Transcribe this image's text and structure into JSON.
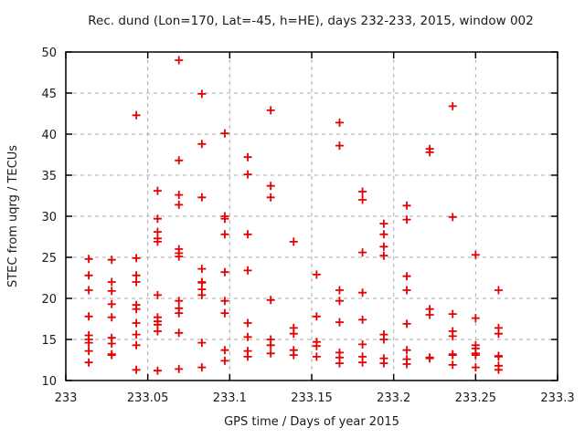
{
  "title": "Rec. dund (Lon=170, Lat=-45, h=HE), days 232-233, 2015, window 002",
  "colors": {
    "marker": "#e60000",
    "grid": "#ababab",
    "frame": "#000000",
    "background": "#ffffff",
    "text": "#1a1a1a"
  },
  "chart_data": {
    "type": "scatter",
    "title": "Rec. dund (Lon=170, Lat=-45, h=HE), days 232-233, 2015, window 002",
    "xlabel": "GPS time / Days of year 2015",
    "ylabel": "STEC from uqrg / TECUs",
    "xlim": [
      233,
      233.3
    ],
    "ylim": [
      10,
      50
    ],
    "grid": true,
    "legend": "none",
    "marker_shape": "plus",
    "xticks": {
      "values": [
        233,
        233.05,
        233.1,
        233.15,
        233.2,
        233.25,
        233.3
      ],
      "labels": [
        "233",
        "233.05",
        "233.1",
        "233.15",
        "233.2",
        "233.25",
        "233.3"
      ]
    },
    "yticks": {
      "values": [
        10,
        15,
        20,
        25,
        30,
        35,
        40,
        45,
        50
      ],
      "labels": [
        "10",
        "15",
        "20",
        "25",
        "30",
        "35",
        "40",
        "45",
        "50"
      ]
    },
    "points": [
      [
        233.014,
        24.8
      ],
      [
        233.014,
        22.8
      ],
      [
        233.014,
        21.0
      ],
      [
        233.014,
        17.8
      ],
      [
        233.014,
        15.5
      ],
      [
        233.014,
        15.0
      ],
      [
        233.014,
        14.6
      ],
      [
        233.014,
        13.6
      ],
      [
        233.014,
        12.2
      ],
      [
        233.028,
        24.7
      ],
      [
        233.028,
        22.0
      ],
      [
        233.028,
        20.9
      ],
      [
        233.028,
        19.3
      ],
      [
        233.028,
        17.7
      ],
      [
        233.028,
        15.2
      ],
      [
        233.028,
        14.5
      ],
      [
        233.028,
        13.2
      ],
      [
        233.028,
        13.1
      ],
      [
        233.043,
        42.3
      ],
      [
        233.043,
        24.9
      ],
      [
        233.043,
        22.8
      ],
      [
        233.043,
        22.0
      ],
      [
        233.043,
        19.2
      ],
      [
        233.043,
        18.7
      ],
      [
        233.043,
        17.0
      ],
      [
        233.043,
        15.6
      ],
      [
        233.043,
        14.3
      ],
      [
        233.043,
        11.3
      ],
      [
        233.056,
        33.1
      ],
      [
        233.056,
        29.7
      ],
      [
        233.056,
        28.1
      ],
      [
        233.056,
        27.3
      ],
      [
        233.056,
        26.9
      ],
      [
        233.056,
        20.4
      ],
      [
        233.056,
        17.7
      ],
      [
        233.056,
        17.2
      ],
      [
        233.056,
        16.8
      ],
      [
        233.056,
        16.0
      ],
      [
        233.056,
        11.2
      ],
      [
        233.069,
        49.0
      ],
      [
        233.069,
        36.8
      ],
      [
        233.069,
        32.6
      ],
      [
        233.069,
        31.4
      ],
      [
        233.069,
        26.0
      ],
      [
        233.069,
        25.5
      ],
      [
        233.069,
        25.1
      ],
      [
        233.069,
        19.7
      ],
      [
        233.069,
        18.8
      ],
      [
        233.069,
        18.2
      ],
      [
        233.069,
        15.8
      ],
      [
        233.069,
        11.4
      ],
      [
        233.083,
        44.9
      ],
      [
        233.083,
        38.8
      ],
      [
        233.083,
        32.3
      ],
      [
        233.083,
        23.6
      ],
      [
        233.083,
        22.0
      ],
      [
        233.083,
        21.9
      ],
      [
        233.083,
        21.1
      ],
      [
        233.083,
        20.4
      ],
      [
        233.083,
        14.6
      ],
      [
        233.083,
        11.6
      ],
      [
        233.097,
        40.1
      ],
      [
        233.097,
        30.0
      ],
      [
        233.097,
        29.7
      ],
      [
        233.097,
        27.8
      ],
      [
        233.097,
        23.2
      ],
      [
        233.097,
        19.7
      ],
      [
        233.097,
        18.2
      ],
      [
        233.097,
        13.7
      ],
      [
        233.097,
        12.4
      ],
      [
        233.111,
        37.2
      ],
      [
        233.111,
        35.1
      ],
      [
        233.111,
        27.8
      ],
      [
        233.111,
        23.4
      ],
      [
        233.111,
        17.0
      ],
      [
        233.111,
        15.3
      ],
      [
        233.111,
        13.6
      ],
      [
        233.111,
        12.9
      ],
      [
        233.125,
        42.9
      ],
      [
        233.125,
        33.7
      ],
      [
        233.125,
        32.3
      ],
      [
        233.125,
        19.8
      ],
      [
        233.125,
        15.0
      ],
      [
        233.125,
        14.3
      ],
      [
        233.125,
        13.3
      ],
      [
        233.139,
        26.9
      ],
      [
        233.139,
        16.4
      ],
      [
        233.139,
        15.7
      ],
      [
        233.139,
        13.7
      ],
      [
        233.139,
        13.1
      ],
      [
        233.153,
        22.9
      ],
      [
        233.153,
        17.8
      ],
      [
        233.153,
        14.7
      ],
      [
        233.153,
        14.2
      ],
      [
        233.153,
        12.9
      ],
      [
        233.167,
        41.4
      ],
      [
        233.167,
        38.6
      ],
      [
        233.167,
        21.0
      ],
      [
        233.167,
        19.7
      ],
      [
        233.167,
        17.1
      ],
      [
        233.167,
        13.4
      ],
      [
        233.167,
        12.8
      ],
      [
        233.167,
        12.1
      ],
      [
        233.181,
        33.0
      ],
      [
        233.181,
        32.0
      ],
      [
        233.181,
        25.6
      ],
      [
        233.181,
        20.7
      ],
      [
        233.181,
        17.4
      ],
      [
        233.181,
        14.4
      ],
      [
        233.181,
        12.9
      ],
      [
        233.181,
        12.2
      ],
      [
        233.194,
        29.1
      ],
      [
        233.194,
        27.8
      ],
      [
        233.194,
        26.3
      ],
      [
        233.194,
        25.2
      ],
      [
        233.194,
        15.6
      ],
      [
        233.194,
        15.0
      ],
      [
        233.194,
        12.7
      ],
      [
        233.194,
        12.1
      ],
      [
        233.208,
        31.3
      ],
      [
        233.208,
        29.6
      ],
      [
        233.208,
        22.7
      ],
      [
        233.208,
        21.0
      ],
      [
        233.208,
        16.9
      ],
      [
        233.208,
        13.7
      ],
      [
        233.208,
        12.6
      ],
      [
        233.208,
        12.0
      ],
      [
        233.222,
        38.2
      ],
      [
        233.222,
        37.8
      ],
      [
        233.222,
        18.7
      ],
      [
        233.222,
        18.0
      ],
      [
        233.222,
        12.8
      ],
      [
        233.222,
        12.7
      ],
      [
        233.236,
        43.4
      ],
      [
        233.236,
        29.9
      ],
      [
        233.236,
        18.1
      ],
      [
        233.236,
        16.0
      ],
      [
        233.236,
        15.4
      ],
      [
        233.236,
        13.2
      ],
      [
        233.236,
        13.1
      ],
      [
        233.236,
        11.9
      ],
      [
        233.25,
        25.3
      ],
      [
        233.25,
        17.6
      ],
      [
        233.25,
        14.3
      ],
      [
        233.25,
        13.9
      ],
      [
        233.25,
        13.3
      ],
      [
        233.25,
        13.1
      ],
      [
        233.25,
        11.6
      ],
      [
        233.264,
        21.0
      ],
      [
        233.264,
        16.4
      ],
      [
        233.264,
        15.7
      ],
      [
        233.264,
        13.0
      ],
      [
        233.264,
        12.9
      ],
      [
        233.264,
        11.8
      ],
      [
        233.264,
        11.3
      ]
    ]
  }
}
